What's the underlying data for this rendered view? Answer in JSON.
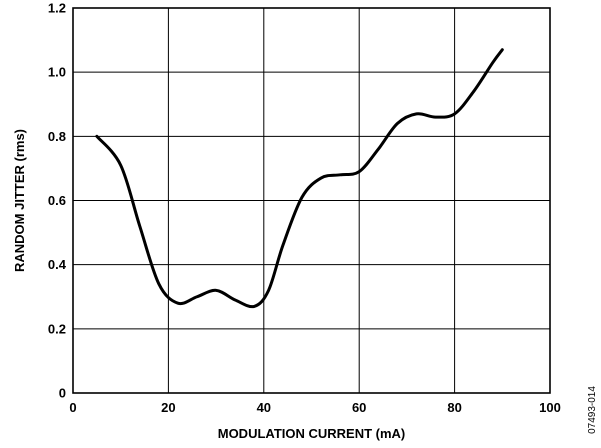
{
  "figure_id": "07493-014",
  "chart_data": {
    "type": "line",
    "title": "",
    "xlabel": "MODULATION CURRENT (mA)",
    "ylabel": "RANDOM JITTER (rms)",
    "xlim": [
      0,
      100
    ],
    "ylim": [
      0,
      1.2
    ],
    "xticks": [
      "0",
      "20",
      "40",
      "60",
      "80",
      "100"
    ],
    "yticks": [
      "0",
      "0.2",
      "0.4",
      "0.6",
      "0.8",
      "1.0",
      "1.2"
    ],
    "grid": true,
    "series": [
      {
        "x": [
          5,
          10,
          14,
          18,
          22,
          26,
          30,
          34,
          38,
          41,
          44,
          48,
          52,
          56,
          60,
          64,
          68,
          72,
          76,
          80,
          84,
          88,
          90
        ],
        "y": [
          0.8,
          0.71,
          0.52,
          0.34,
          0.28,
          0.3,
          0.32,
          0.29,
          0.27,
          0.32,
          0.46,
          0.61,
          0.67,
          0.68,
          0.69,
          0.76,
          0.84,
          0.87,
          0.86,
          0.87,
          0.94,
          1.03,
          1.07
        ],
        "color": "#000000"
      }
    ]
  }
}
